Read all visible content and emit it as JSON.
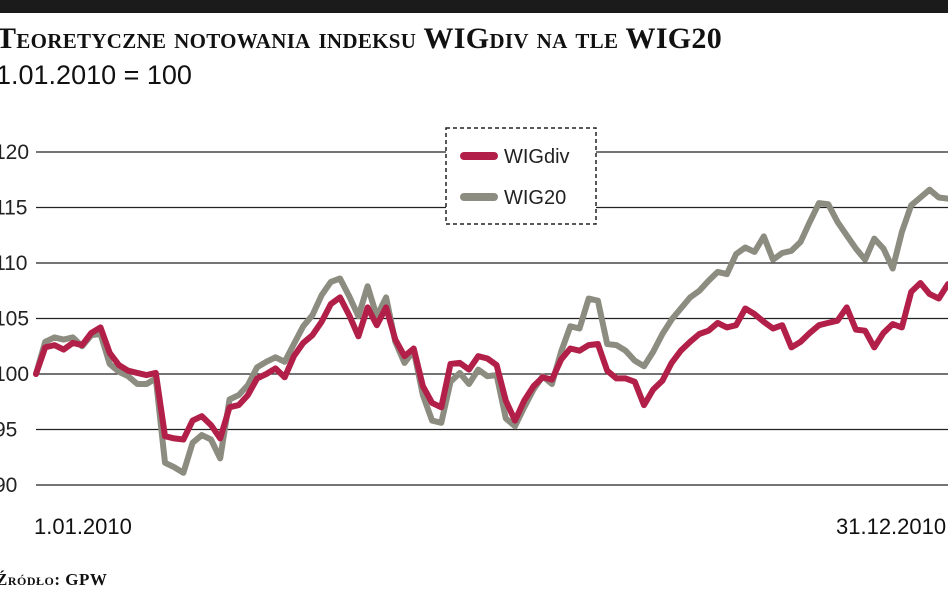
{
  "header": {
    "title": "Teoretyczne notowania indeksu WIGdiv na tle WIG20",
    "subtitle": "1.01.2010 = 100"
  },
  "footer": {
    "source": "Źródło: GPW"
  },
  "colors": {
    "wigdiv": "#b21f48",
    "wig20": "#8c8c80",
    "grid": "#222222",
    "top_bar": "#1b1b1b"
  },
  "chart_data": {
    "type": "line",
    "title": "Teoretyczne notowania indeksu WIGdiv na tle WIG20",
    "subtitle": "1.01.2010 = 100",
    "xlabel": "",
    "ylabel": "",
    "x_start_label": "1.01.2010",
    "x_end_label": "31.12.2010",
    "ylim": [
      90,
      120
    ],
    "y_ticks": [
      90,
      95,
      100,
      105,
      110,
      115,
      120
    ],
    "y_tick_labels": [
      "90",
      "95",
      "100",
      "105",
      "110",
      "115",
      "120"
    ],
    "grid": "horizontal",
    "legend_position": "top-center",
    "legend": [
      "WIGdiv",
      "WIG20"
    ],
    "series": [
      {
        "name": "WIGdiv",
        "color": "#b21f48",
        "values": [
          100.0,
          102.4,
          102.6,
          102.2,
          102.8,
          102.6,
          103.7,
          104.2,
          101.9,
          100.8,
          100.3,
          100.1,
          99.9,
          100.1,
          94.4,
          94.2,
          94.1,
          95.8,
          96.2,
          95.4,
          94.2,
          97.0,
          97.2,
          98.1,
          99.6,
          100.0,
          100.5,
          99.7,
          101.6,
          102.8,
          103.5,
          104.7,
          106.3,
          106.9,
          105.3,
          103.4,
          106.0,
          104.4,
          106.0,
          103.1,
          101.6,
          102.3,
          98.9,
          97.4,
          97.0,
          100.9,
          101.0,
          100.4,
          101.6,
          101.4,
          100.8,
          97.6,
          95.8,
          97.6,
          98.9,
          99.7,
          99.5,
          101.3,
          102.3,
          102.1,
          102.6,
          102.7,
          100.3,
          99.6,
          99.6,
          99.3,
          97.2,
          98.6,
          99.4,
          101.0,
          102.1,
          102.9,
          103.6,
          103.9,
          104.6,
          104.2,
          104.4,
          105.9,
          105.4,
          104.7,
          104.1,
          104.4,
          102.4,
          102.9,
          103.7,
          104.4,
          104.6,
          104.8,
          106.0,
          104.0,
          103.9,
          102.4,
          103.7,
          104.5,
          104.2,
          107.4,
          108.2,
          107.2,
          106.8,
          108.1
        ]
      },
      {
        "name": "WIG20",
        "color": "#8c8c80",
        "values": [
          100.0,
          102.9,
          103.3,
          103.1,
          103.3,
          102.5,
          103.5,
          103.6,
          100.9,
          100.2,
          99.8,
          99.1,
          99.1,
          99.6,
          92.0,
          91.6,
          91.1,
          93.8,
          94.5,
          94.1,
          92.4,
          97.7,
          98.1,
          99.0,
          100.6,
          101.1,
          101.5,
          101.1,
          102.7,
          104.3,
          105.3,
          107.1,
          108.3,
          108.6,
          107.0,
          105.2,
          107.9,
          105.2,
          106.9,
          102.9,
          101.0,
          102.1,
          98.1,
          95.8,
          95.6,
          99.3,
          100.1,
          99.1,
          100.4,
          99.8,
          99.9,
          96.0,
          95.3,
          97.0,
          98.6,
          99.8,
          99.1,
          102.0,
          104.3,
          104.1,
          106.8,
          106.6,
          102.7,
          102.6,
          102.1,
          101.2,
          100.7,
          102.0,
          103.6,
          104.9,
          105.9,
          106.9,
          107.5,
          108.4,
          109.2,
          109.0,
          110.8,
          111.4,
          111.0,
          112.4,
          110.3,
          110.9,
          111.1,
          111.9,
          113.7,
          115.4,
          115.3,
          113.7,
          112.5,
          111.3,
          110.3,
          112.2,
          111.3,
          109.5,
          112.8,
          115.2,
          115.9,
          116.6,
          115.9,
          115.8
        ]
      }
    ]
  }
}
